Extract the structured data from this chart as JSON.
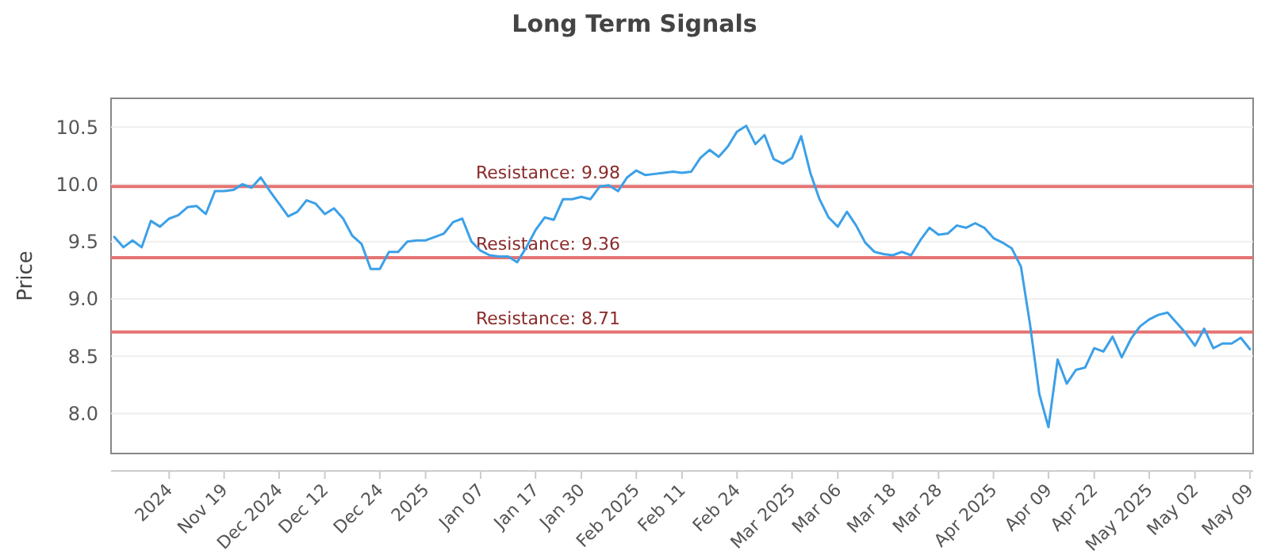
{
  "chart_data": {
    "type": "line",
    "title": "Long Term Signals",
    "ylabel": "Price",
    "categories": [
      null,
      null,
      null,
      null,
      null,
      null,
      "2024",
      null,
      null,
      null,
      null,
      null,
      "Nov 19",
      null,
      null,
      null,
      null,
      null,
      "Dec 2024",
      null,
      null,
      null,
      null,
      "Dec 12",
      null,
      null,
      null,
      null,
      null,
      "Dec 24",
      null,
      null,
      null,
      null,
      "2025",
      null,
      null,
      null,
      null,
      null,
      "Jan 07",
      null,
      null,
      null,
      null,
      null,
      "Jan 17",
      null,
      null,
      null,
      null,
      "Jan 30",
      null,
      null,
      null,
      null,
      null,
      "Feb 2025",
      null,
      null,
      null,
      null,
      "Feb 11",
      null,
      null,
      null,
      null,
      null,
      "Feb 24",
      null,
      null,
      null,
      null,
      null,
      "Mar 2025",
      null,
      null,
      null,
      null,
      "Mar 06",
      null,
      null,
      null,
      null,
      null,
      "Mar 18",
      null,
      null,
      null,
      null,
      "Mar 28",
      null,
      null,
      null,
      null,
      null,
      "Apr 2025",
      null,
      null,
      null,
      null,
      null,
      "Apr 09",
      null,
      null,
      null,
      null,
      "Apr 22",
      null,
      null,
      null,
      null,
      null,
      "May 2025",
      null,
      null,
      null,
      null,
      "May 02",
      null,
      null,
      null,
      null,
      null,
      "May 09"
    ],
    "series": [
      {
        "color": "#3ca0e8",
        "values": [
          9.54,
          9.45,
          9.51,
          9.45,
          9.68,
          9.63,
          9.7,
          9.73,
          9.8,
          9.81,
          9.74,
          9.94,
          9.94,
          9.95,
          10.0,
          9.97,
          10.06,
          9.94,
          9.83,
          9.72,
          9.76,
          9.86,
          9.83,
          9.74,
          9.79,
          9.7,
          9.55,
          9.48,
          9.26,
          9.26,
          9.41,
          9.41,
          9.5,
          9.51,
          9.51,
          9.54,
          9.57,
          9.67,
          9.7,
          9.5,
          9.42,
          9.38,
          9.37,
          9.37,
          9.32,
          9.45,
          9.6,
          9.71,
          9.69,
          9.87,
          9.87,
          9.89,
          9.87,
          9.98,
          9.99,
          9.94,
          10.06,
          10.12,
          10.08,
          10.09,
          10.1,
          10.11,
          10.1,
          10.11,
          10.23,
          10.3,
          10.24,
          10.33,
          10.46,
          10.51,
          10.35,
          10.43,
          10.22,
          10.18,
          10.23,
          10.42,
          10.1,
          9.87,
          9.71,
          9.63,
          9.76,
          9.64,
          9.49,
          9.41,
          9.39,
          9.38,
          9.41,
          9.38,
          9.51,
          9.62,
          9.56,
          9.57,
          9.64,
          9.62,
          9.66,
          9.62,
          9.53,
          9.49,
          9.44,
          9.28,
          8.77,
          8.17,
          7.88,
          8.47,
          8.26,
          8.38,
          8.4,
          8.57,
          8.54,
          8.67,
          8.49,
          8.65,
          8.76,
          8.82,
          8.86,
          8.88,
          8.79,
          8.7,
          8.59,
          8.74,
          8.57,
          8.61,
          8.61,
          8.66,
          8.56
        ]
      }
    ],
    "ylim": [
      7.65,
      10.75
    ],
    "yticks": [
      {
        "value": 8,
        "label": "8.0"
      },
      8.5,
      {
        "value": 9,
        "label": "9.0"
      },
      9.5,
      {
        "value": 10,
        "label": "10.0"
      },
      10.5
    ],
    "grid": "y",
    "ref_lines": [
      {
        "axis": "y",
        "value": 9.98,
        "label": "Resistance: 9.98",
        "color": "#e57373"
      },
      {
        "axis": "y",
        "value": 9.36,
        "label": "Resistance: 9.36",
        "color": "#e57373"
      },
      {
        "axis": "y",
        "value": 8.71,
        "label": "Resistance: 8.71",
        "color": "#e57373"
      }
    ]
  }
}
